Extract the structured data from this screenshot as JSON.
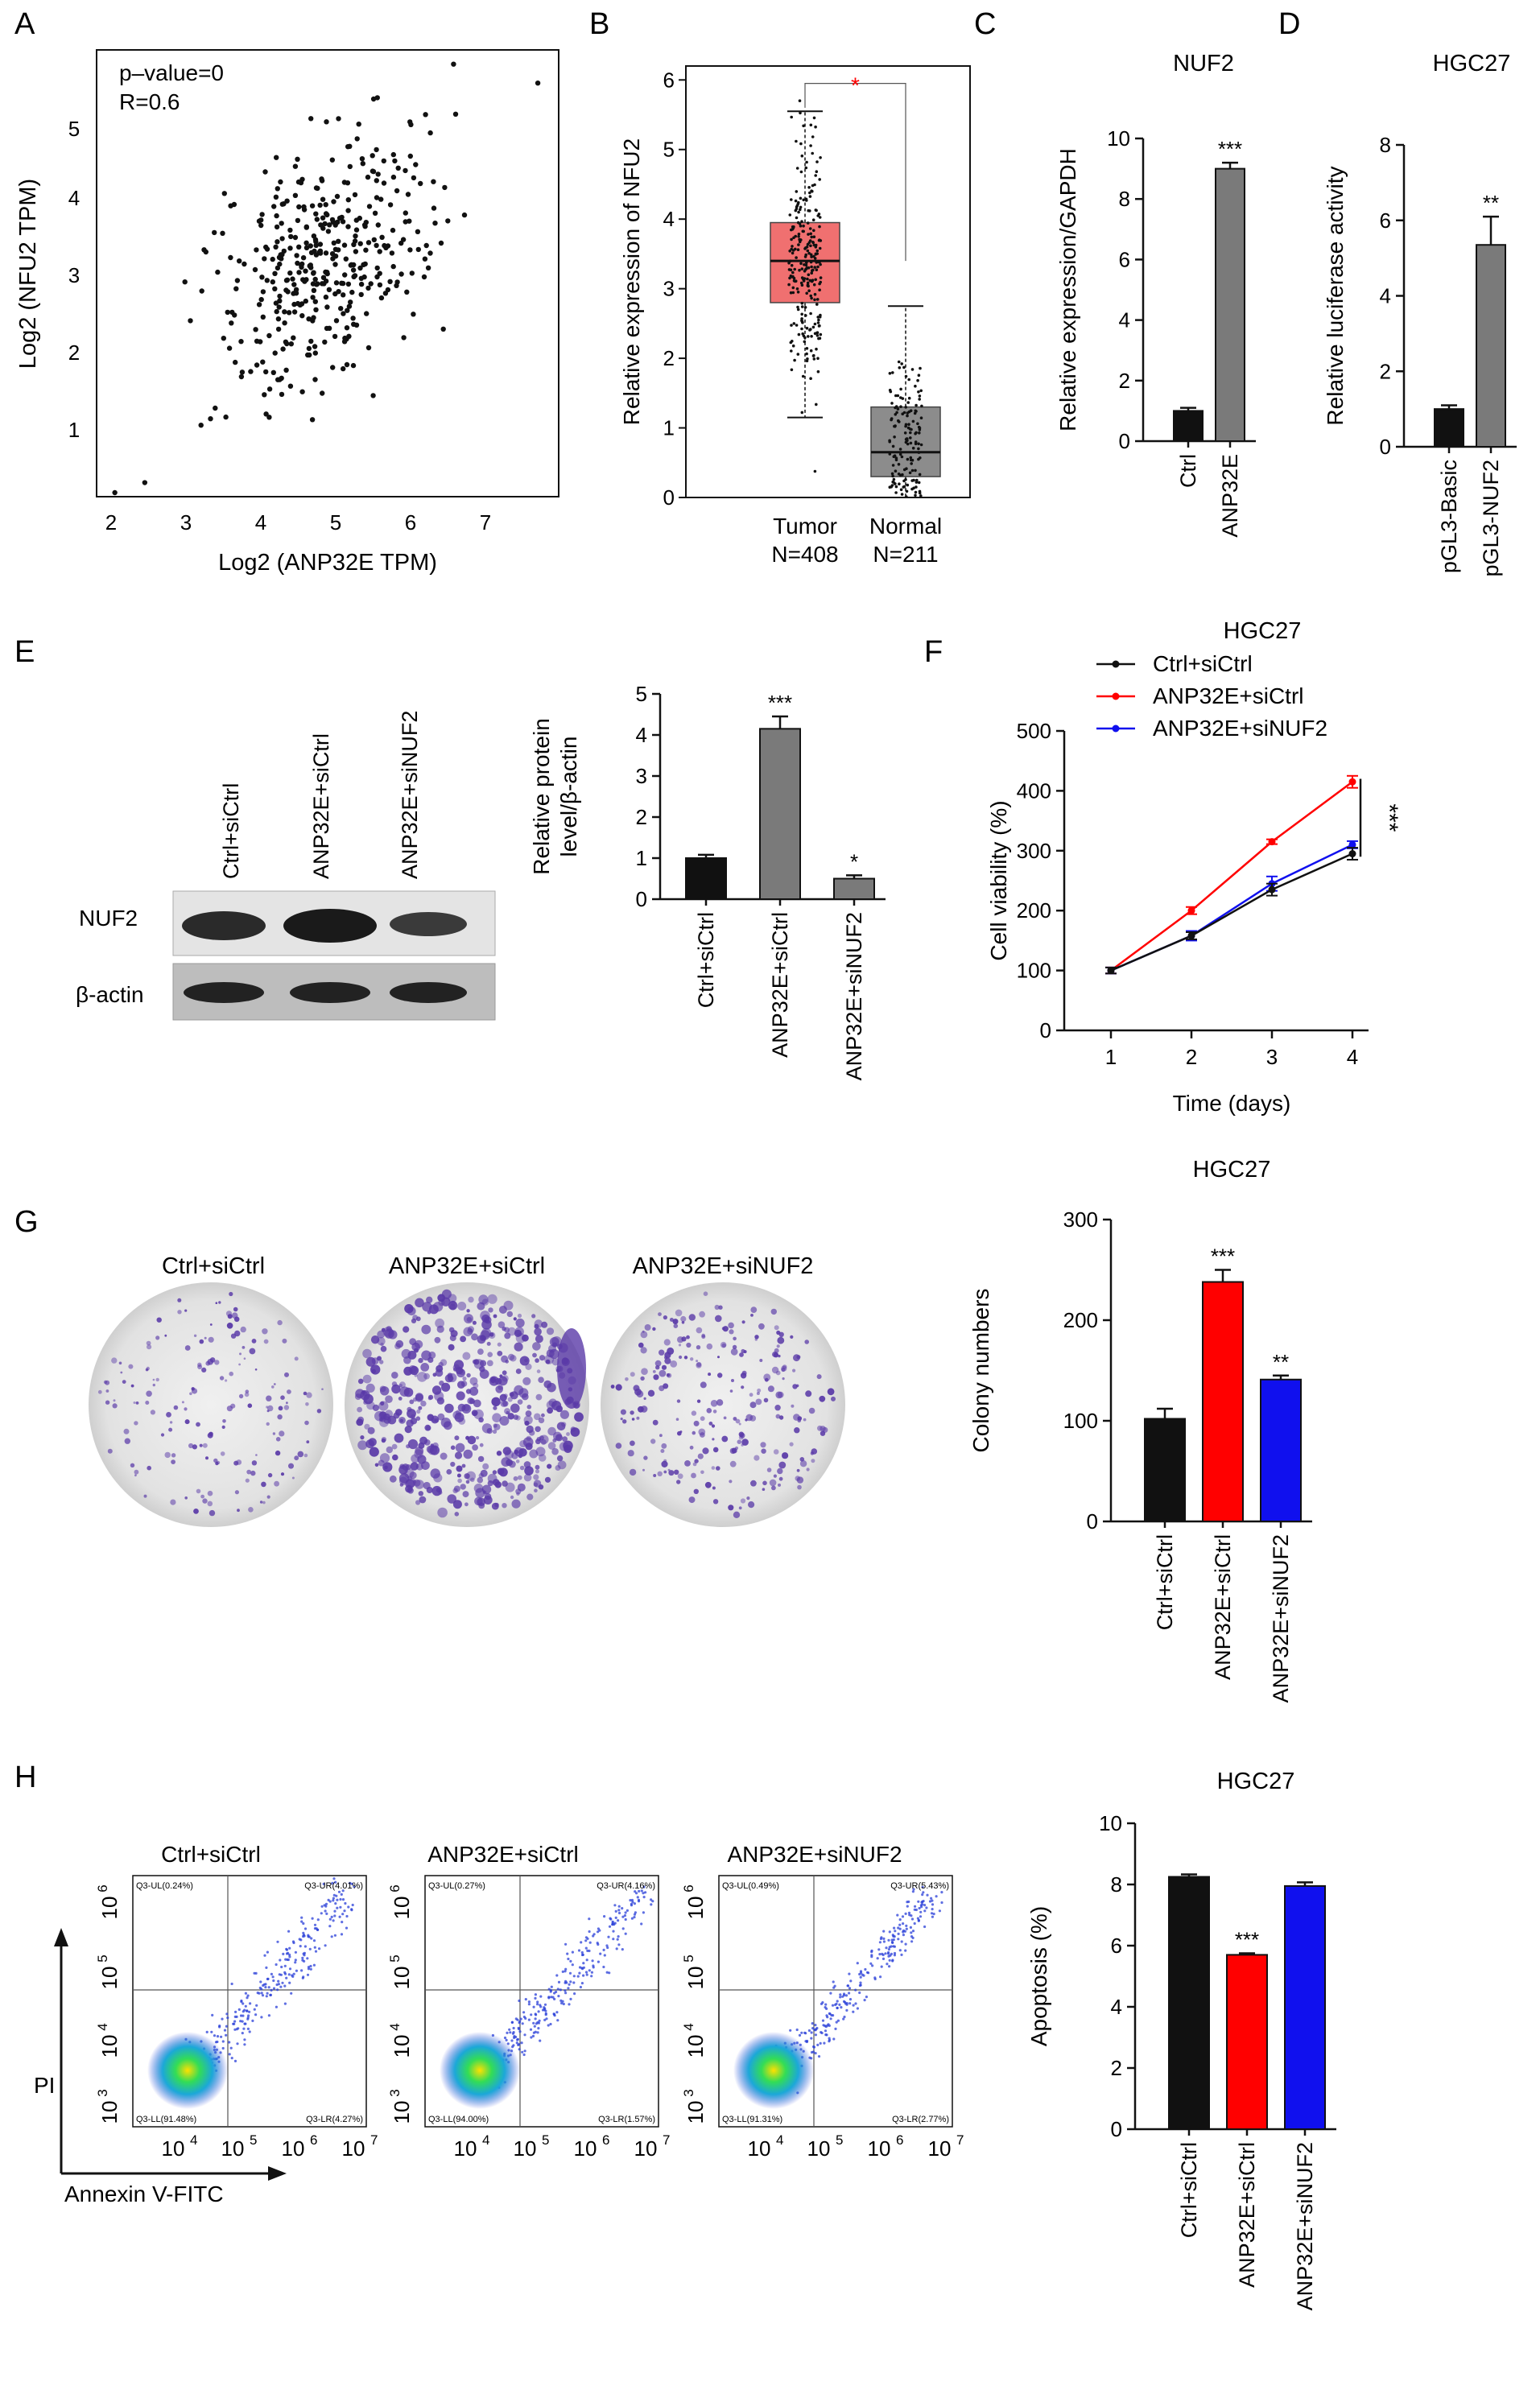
{
  "panels": {
    "A": "A",
    "B": "B",
    "C": "C",
    "D": "D",
    "E": "E",
    "F": "F",
    "G": "G",
    "H": "H"
  },
  "colors": {
    "black": "#111111",
    "gray": "#7a7a7a",
    "red": "#ff0000",
    "blue": "#1010ee",
    "tumor_box": "#f07070",
    "normal_box": "#8c8c8c",
    "crystal_violet": "#5a3aa8"
  },
  "panel_A": {
    "annotations": [
      "p–value=0",
      "R=0.6"
    ],
    "xlabel": "Log2 (ANP32E TPM)",
    "ylabel": "Log2 (NFU2 TPM)",
    "xticks": [
      "2",
      "3",
      "4",
      "5",
      "6",
      "7"
    ],
    "yticks": [
      "1",
      "2",
      "3",
      "4",
      "5"
    ]
  },
  "panel_E_blot": {
    "lanes": [
      "Ctrl+siCtrl",
      "ANP32E+siCtrl",
      "ANP32E+siNUF2"
    ],
    "rows": [
      "NUF2",
      "β-actin"
    ]
  },
  "panel_G_plates": {
    "labels": [
      "Ctrl+siCtrl",
      "ANP32E+siCtrl",
      "ANP32E+siNUF2"
    ]
  },
  "panel_H_flow": {
    "titles": [
      "Ctrl+siCtrl",
      "ANP32E+siCtrl",
      "ANP32E+siNUF2"
    ],
    "quadrants": [
      {
        "UL": "Q3-UL(0.24%)",
        "UR": "Q3-UR(4.01%)",
        "LL": "Q3-LL(91.48%)",
        "LR": "Q3-LR(4.27%)"
      },
      {
        "UL": "Q3-UL(0.27%)",
        "UR": "Q3-UR(4.16%)",
        "LL": "Q3-LL(94.00%)",
        "LR": "Q3-LR(1.57%)"
      },
      {
        "UL": "Q3-UL(0.49%)",
        "UR": "Q3-UR(5.43%)",
        "LL": "Q3-LL(91.31%)",
        "LR": "Q3-LR(2.77%)"
      }
    ],
    "xaxis_label": "Annexin V-FITC",
    "yaxis_label": "PI",
    "xticks": [
      "10",
      "10",
      "10",
      "10"
    ],
    "xexps": [
      "4",
      "5",
      "6",
      "7"
    ],
    "yticks": [
      "10",
      "10",
      "10",
      "10"
    ],
    "yexps": [
      "3",
      "4",
      "5",
      "6"
    ]
  },
  "chart_data": [
    {
      "id": "B",
      "type": "box",
      "categories": [
        "Tumor",
        "Normal"
      ],
      "cat_sub": [
        "N=408",
        "N=211"
      ],
      "stats": [
        {
          "min": 1.15,
          "q1": 2.8,
          "median": 3.4,
          "q3": 3.95,
          "max": 5.55
        },
        {
          "min": 0.0,
          "q1": 0.3,
          "median": 0.65,
          "q3": 1.3,
          "max": 2.75
        }
      ],
      "ylabel": "Relative expression of NFU2",
      "ylim": [
        0,
        6.2
      ],
      "yticks": [
        0,
        1,
        2,
        3,
        4,
        5,
        6
      ],
      "significance": "*"
    },
    {
      "id": "C",
      "type": "bar",
      "title": "NUF2",
      "categories": [
        "Ctrl",
        "ANP32E"
      ],
      "values": [
        1.0,
        9.0
      ],
      "errors": [
        0.1,
        0.2
      ],
      "sig": [
        "",
        "***"
      ],
      "ylabel": "Relative expression/GAPDH",
      "ylim": [
        0,
        10
      ],
      "yticks": [
        0,
        2,
        4,
        6,
        8,
        10
      ]
    },
    {
      "id": "D",
      "type": "bar",
      "title": "HGC27",
      "categories": [
        "pGL3-Basic",
        "pGL3-NUF2"
      ],
      "values": [
        1.0,
        5.35
      ],
      "errors": [
        0.1,
        0.75
      ],
      "sig": [
        "",
        "**"
      ],
      "ylabel": "Relative luciferase activity",
      "ylim": [
        0,
        8
      ],
      "yticks": [
        0,
        2,
        4,
        6,
        8
      ]
    },
    {
      "id": "E",
      "type": "bar",
      "categories": [
        "Ctrl+siCtrl",
        "ANP32E+siCtrl",
        "ANP32E+siNUF2"
      ],
      "values": [
        1.0,
        4.15,
        0.5
      ],
      "errors": [
        0.08,
        0.3,
        0.08
      ],
      "sig": [
        "",
        "***",
        "*"
      ],
      "ylabel": "Relative protein level/β-actin",
      "ylim": [
        0,
        5
      ],
      "yticks": [
        0,
        1,
        2,
        3,
        4,
        5
      ]
    },
    {
      "id": "F",
      "type": "line",
      "title": "HGC27",
      "x": [
        1,
        2,
        3,
        4
      ],
      "series": [
        {
          "name": "Ctrl+siCtrl",
          "values": [
            100,
            158,
            235,
            295
          ],
          "errors": [
            5,
            6,
            10,
            10
          ]
        },
        {
          "name": "ANP32E+siCtrl",
          "values": [
            100,
            200,
            315,
            415
          ],
          "errors": [
            5,
            6,
            4,
            10
          ]
        },
        {
          "name": "ANP32E+siNUF2",
          "values": [
            100,
            158,
            245,
            310
          ],
          "errors": [
            5,
            8,
            12,
            6
          ]
        }
      ],
      "xlabel": "Time (days)",
      "ylabel": "Cell viability (%)",
      "xlim": [
        0.5,
        4.3
      ],
      "ylim": [
        0,
        500
      ],
      "xticks": [
        1,
        2,
        3,
        4
      ],
      "yticks": [
        0,
        100,
        200,
        300,
        400,
        500
      ],
      "significance": "***"
    },
    {
      "id": "G",
      "type": "bar",
      "title": "HGC27",
      "categories": [
        "Ctrl+siCtrl",
        "ANP32E+siCtrl",
        "ANP32E+siNUF2"
      ],
      "values": [
        102,
        238,
        141
      ],
      "errors": [
        10,
        12,
        4
      ],
      "sig": [
        "",
        "***",
        "**"
      ],
      "ylabel": "Colony numbers",
      "ylim": [
        0,
        300
      ],
      "yticks": [
        0,
        100,
        200,
        300
      ]
    },
    {
      "id": "H",
      "type": "bar",
      "title": "HGC27",
      "categories": [
        "Ctrl+siCtrl",
        "ANP32E+siCtrl",
        "ANP32E+siNUF2"
      ],
      "values": [
        8.25,
        5.7,
        7.95
      ],
      "errors": [
        0.08,
        0.05,
        0.12
      ],
      "sig": [
        "",
        "***",
        ""
      ],
      "ylabel": "Apoptosis (%)",
      "ylim": [
        0,
        10
      ],
      "yticks": [
        0,
        2,
        4,
        6,
        8,
        10
      ]
    }
  ]
}
